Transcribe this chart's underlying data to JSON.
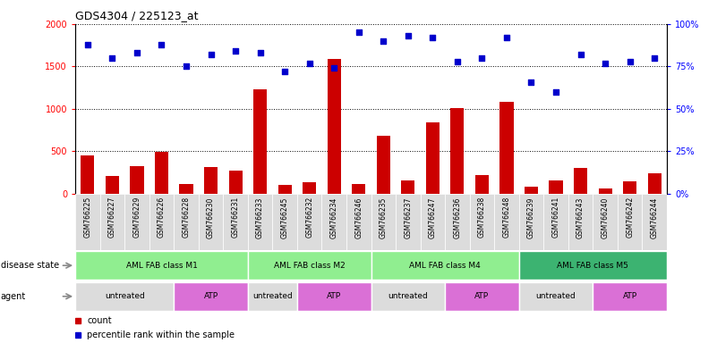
{
  "title": "GDS4304 / 225123_at",
  "samples": [
    "GSM766225",
    "GSM766227",
    "GSM766229",
    "GSM766226",
    "GSM766228",
    "GSM766230",
    "GSM766231",
    "GSM766233",
    "GSM766245",
    "GSM766232",
    "GSM766234",
    "GSM766246",
    "GSM766235",
    "GSM766237",
    "GSM766247",
    "GSM766236",
    "GSM766238",
    "GSM766248",
    "GSM766239",
    "GSM766241",
    "GSM766243",
    "GSM766240",
    "GSM766242",
    "GSM766244"
  ],
  "counts": [
    450,
    210,
    330,
    490,
    120,
    310,
    270,
    1230,
    110,
    140,
    1590,
    120,
    680,
    160,
    840,
    1010,
    220,
    1080,
    80,
    160,
    300,
    60,
    150,
    240
  ],
  "percentiles": [
    88,
    80,
    83,
    88,
    75,
    82,
    84,
    83,
    72,
    77,
    74,
    95,
    90,
    93,
    92,
    78,
    80,
    92,
    66,
    60,
    82,
    77,
    78,
    80
  ],
  "disease_state_groups": [
    {
      "label": "AML FAB class M1",
      "start": 0,
      "end": 7,
      "color": "#90EE90"
    },
    {
      "label": "AML FAB class M2",
      "start": 7,
      "end": 12,
      "color": "#90EE90"
    },
    {
      "label": "AML FAB class M4",
      "start": 12,
      "end": 18,
      "color": "#90EE90"
    },
    {
      "label": "AML FAB class M5",
      "start": 18,
      "end": 24,
      "color": "#3CB371"
    }
  ],
  "agent_groups": [
    {
      "label": "untreated",
      "start": 0,
      "end": 4,
      "color": "#DCDCDC"
    },
    {
      "label": "ATP",
      "start": 4,
      "end": 7,
      "color": "#DA70D6"
    },
    {
      "label": "untreated",
      "start": 7,
      "end": 9,
      "color": "#DCDCDC"
    },
    {
      "label": "ATP",
      "start": 9,
      "end": 12,
      "color": "#DA70D6"
    },
    {
      "label": "untreated",
      "start": 12,
      "end": 15,
      "color": "#DCDCDC"
    },
    {
      "label": "ATP",
      "start": 15,
      "end": 18,
      "color": "#DA70D6"
    },
    {
      "label": "untreated",
      "start": 18,
      "end": 21,
      "color": "#DCDCDC"
    },
    {
      "label": "ATP",
      "start": 21,
      "end": 24,
      "color": "#DA70D6"
    }
  ],
  "bar_color": "#CC0000",
  "dot_color": "#0000CC",
  "ylim_left": [
    0,
    2000
  ],
  "ylim_right": [
    0,
    100
  ],
  "yticks_left": [
    0,
    500,
    1000,
    1500,
    2000
  ],
  "yticks_right": [
    0,
    25,
    50,
    75,
    100
  ],
  "ytick_right_labels": [
    "0%",
    "25%",
    "50%",
    "75%",
    "100%"
  ],
  "sample_bg_color": "#DCDCDC",
  "legend_bar_label": "count",
  "legend_dot_label": "percentile rank within the sample",
  "disease_state_label": "disease state",
  "agent_label": "agent"
}
